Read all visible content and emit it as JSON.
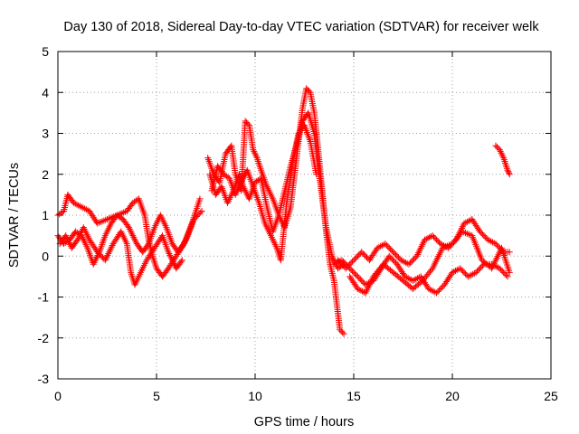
{
  "chart_data": {
    "type": "scatter",
    "title": "Day 130 of 2018, Sidereal Day-to-day VTEC variation (SDTVAR) for receiver welk",
    "xlabel": "GPS time / hours",
    "ylabel": "SDTVAR / TECUs",
    "xlim": [
      0,
      25
    ],
    "ylim": [
      -3,
      5
    ],
    "x_ticks": [
      0,
      5,
      10,
      15,
      20,
      25
    ],
    "y_ticks": [
      -3,
      -2,
      -1,
      0,
      1,
      2,
      3,
      4,
      5
    ],
    "grid": true,
    "marker": "+",
    "marker_color": "#ff0000",
    "series": [
      {
        "name": "track-1",
        "points": [
          [
            0.0,
            1.0
          ],
          [
            0.3,
            1.1
          ],
          [
            0.5,
            1.5
          ],
          [
            0.8,
            1.3
          ],
          [
            1.2,
            1.2
          ],
          [
            1.6,
            1.1
          ],
          [
            2.0,
            0.8
          ],
          [
            2.5,
            0.9
          ],
          [
            3.0,
            1.0
          ],
          [
            3.5,
            1.1
          ],
          [
            3.8,
            1.3
          ],
          [
            4.1,
            1.4
          ],
          [
            4.4,
            1.0
          ],
          [
            4.6,
            0.4
          ],
          [
            4.8,
            0.0
          ],
          [
            5.0,
            -0.3
          ],
          [
            5.3,
            -0.5
          ],
          [
            5.6,
            -0.3
          ],
          [
            6.0,
            0.0
          ],
          [
            6.4,
            0.3
          ],
          [
            6.8,
            0.8
          ],
          [
            7.2,
            1.4
          ]
        ]
      },
      {
        "name": "track-2",
        "points": [
          [
            0.0,
            0.5
          ],
          [
            0.3,
            0.3
          ],
          [
            0.6,
            0.4
          ],
          [
            0.9,
            0.6
          ],
          [
            1.2,
            0.5
          ],
          [
            1.5,
            0.2
          ],
          [
            1.8,
            -0.2
          ],
          [
            2.1,
            0.1
          ],
          [
            2.4,
            0.5
          ],
          [
            2.7,
            0.8
          ],
          [
            3.0,
            1.0
          ],
          [
            3.3,
            0.9
          ],
          [
            3.6,
            0.7
          ],
          [
            4.0,
            0.3
          ],
          [
            4.3,
            0.1
          ],
          [
            4.6,
            0.3
          ],
          [
            4.9,
            0.7
          ],
          [
            5.2,
            1.0
          ],
          [
            5.5,
            0.7
          ],
          [
            5.8,
            0.3
          ],
          [
            6.1,
            0.1
          ],
          [
            6.5,
            0.4
          ],
          [
            6.9,
            0.9
          ],
          [
            7.3,
            1.1
          ]
        ]
      },
      {
        "name": "track-3",
        "points": [
          [
            0.1,
            0.3
          ],
          [
            0.4,
            0.5
          ],
          [
            0.7,
            0.2
          ],
          [
            1.0,
            0.4
          ],
          [
            1.3,
            0.7
          ],
          [
            1.6,
            0.4
          ],
          [
            2.0,
            0.1
          ],
          [
            2.4,
            -0.1
          ],
          [
            2.8,
            0.3
          ],
          [
            3.2,
            0.6
          ],
          [
            3.5,
            0.3
          ],
          [
            3.7,
            -0.4
          ],
          [
            3.9,
            -0.7
          ],
          [
            4.2,
            -0.4
          ],
          [
            4.5,
            -0.1
          ],
          [
            4.9,
            0.2
          ],
          [
            5.3,
            0.5
          ],
          [
            5.6,
            0.1
          ],
          [
            6.0,
            -0.3
          ],
          [
            6.3,
            -0.1
          ]
        ]
      },
      {
        "name": "track-4",
        "points": [
          [
            7.6,
            2.4
          ],
          [
            7.9,
            2.0
          ],
          [
            8.2,
            1.8
          ],
          [
            8.5,
            2.5
          ],
          [
            8.8,
            2.7
          ],
          [
            9.0,
            2.0
          ],
          [
            9.3,
            1.6
          ],
          [
            9.5,
            3.3
          ],
          [
            9.7,
            3.2
          ],
          [
            9.9,
            2.6
          ],
          [
            10.1,
            2.4
          ],
          [
            10.3,
            2.1
          ],
          [
            10.6,
            1.7
          ],
          [
            10.9,
            1.4
          ],
          [
            11.2,
            1.0
          ],
          [
            11.5,
            0.7
          ],
          [
            11.8,
            1.2
          ],
          [
            12.0,
            2.0
          ],
          [
            12.2,
            2.8
          ],
          [
            12.4,
            3.6
          ],
          [
            12.6,
            4.1
          ],
          [
            12.8,
            4.0
          ],
          [
            13.0,
            3.5
          ],
          [
            13.2,
            2.6
          ],
          [
            13.4,
            1.6
          ],
          [
            13.6,
            0.6
          ],
          [
            13.8,
            -0.2
          ],
          [
            14.0,
            -0.6
          ],
          [
            14.2,
            -1.4
          ],
          [
            14.3,
            -1.8
          ],
          [
            14.5,
            -1.9
          ]
        ]
      },
      {
        "name": "track-5",
        "points": [
          [
            7.7,
            2.0
          ],
          [
            8.0,
            1.5
          ],
          [
            8.3,
            1.7
          ],
          [
            8.6,
            1.3
          ],
          [
            8.9,
            1.6
          ],
          [
            9.2,
            2.0
          ],
          [
            9.4,
            1.7
          ],
          [
            9.7,
            1.4
          ],
          [
            10.0,
            1.8
          ],
          [
            10.3,
            1.9
          ],
          [
            10.6,
            1.2
          ],
          [
            10.9,
            0.6
          ],
          [
            11.2,
            1.0
          ],
          [
            11.5,
            1.6
          ],
          [
            11.8,
            2.2
          ],
          [
            12.1,
            2.7
          ],
          [
            12.4,
            3.3
          ],
          [
            12.7,
            3.5
          ],
          [
            13.0,
            3.0
          ],
          [
            13.3,
            1.8
          ],
          [
            13.6,
            0.7
          ],
          [
            13.9,
            0.0
          ],
          [
            14.2,
            -0.3
          ],
          [
            14.5,
            -0.2
          ]
        ]
      },
      {
        "name": "track-6",
        "points": [
          [
            7.8,
            1.6
          ],
          [
            8.1,
            2.2
          ],
          [
            8.4,
            2.0
          ],
          [
            8.7,
            1.9
          ],
          [
            9.0,
            1.5
          ],
          [
            9.3,
            1.8
          ],
          [
            9.6,
            2.1
          ],
          [
            9.9,
            1.7
          ],
          [
            10.2,
            1.3
          ],
          [
            10.5,
            0.8
          ],
          [
            10.8,
            0.5
          ],
          [
            11.1,
            0.2
          ],
          [
            11.3,
            -0.1
          ],
          [
            11.6,
            1.3
          ],
          [
            11.9,
            2.3
          ],
          [
            12.2,
            3.0
          ],
          [
            12.5,
            3.2
          ],
          [
            12.8,
            2.8
          ],
          [
            13.1,
            2.0
          ]
        ]
      },
      {
        "name": "track-7",
        "points": [
          [
            14.0,
            -0.2
          ],
          [
            14.4,
            -0.1
          ],
          [
            14.8,
            -0.3
          ],
          [
            15.2,
            -0.5
          ],
          [
            15.6,
            -0.7
          ],
          [
            16.0,
            -0.6
          ],
          [
            16.4,
            -0.3
          ],
          [
            16.8,
            0.0
          ],
          [
            17.2,
            -0.2
          ],
          [
            17.6,
            -0.5
          ],
          [
            18.0,
            -0.6
          ],
          [
            18.4,
            -0.5
          ],
          [
            18.8,
            -0.8
          ],
          [
            19.2,
            -0.9
          ],
          [
            19.6,
            -0.7
          ],
          [
            20.0,
            -0.4
          ],
          [
            20.4,
            -0.3
          ],
          [
            20.8,
            -0.5
          ],
          [
            21.2,
            -0.4
          ],
          [
            21.6,
            -0.2
          ],
          [
            22.0,
            -0.2
          ],
          [
            22.4,
            -0.3
          ],
          [
            22.8,
            -0.5
          ]
        ]
      },
      {
        "name": "track-8",
        "points": [
          [
            14.2,
            -0.1
          ],
          [
            14.6,
            -0.3
          ],
          [
            15.0,
            -0.1
          ],
          [
            15.4,
            0.1
          ],
          [
            15.8,
            -0.1
          ],
          [
            16.2,
            0.2
          ],
          [
            16.6,
            0.3
          ],
          [
            17.0,
            0.1
          ],
          [
            17.4,
            -0.1
          ],
          [
            17.8,
            -0.2
          ],
          [
            18.2,
            0.0
          ],
          [
            18.6,
            0.4
          ],
          [
            19.0,
            0.5
          ],
          [
            19.4,
            0.3
          ],
          [
            19.8,
            0.2
          ],
          [
            20.2,
            0.4
          ],
          [
            20.6,
            0.8
          ],
          [
            21.0,
            0.9
          ],
          [
            21.4,
            0.6
          ],
          [
            21.8,
            0.4
          ],
          [
            22.2,
            0.3
          ],
          [
            22.6,
            0.1
          ],
          [
            22.9,
            0.1
          ]
        ]
      },
      {
        "name": "track-9",
        "points": [
          [
            14.8,
            -0.5
          ],
          [
            15.2,
            -0.8
          ],
          [
            15.6,
            -0.9
          ],
          [
            16.0,
            -0.5
          ],
          [
            16.5,
            -0.2
          ],
          [
            17.0,
            -0.4
          ],
          [
            17.5,
            -0.6
          ],
          [
            18.0,
            -0.8
          ],
          [
            18.5,
            -0.6
          ],
          [
            19.0,
            -0.3
          ],
          [
            19.5,
            0.2
          ],
          [
            20.0,
            0.3
          ],
          [
            20.5,
            0.6
          ],
          [
            21.0,
            0.5
          ],
          [
            21.5,
            -0.1
          ],
          [
            22.0,
            -0.3
          ],
          [
            22.5,
            0.2
          ],
          [
            22.9,
            -0.4
          ]
        ]
      },
      {
        "name": "track-10",
        "points": [
          [
            22.2,
            2.7
          ],
          [
            22.4,
            2.6
          ],
          [
            22.6,
            2.4
          ],
          [
            22.8,
            2.1
          ],
          [
            22.9,
            2.0
          ]
        ]
      }
    ]
  }
}
